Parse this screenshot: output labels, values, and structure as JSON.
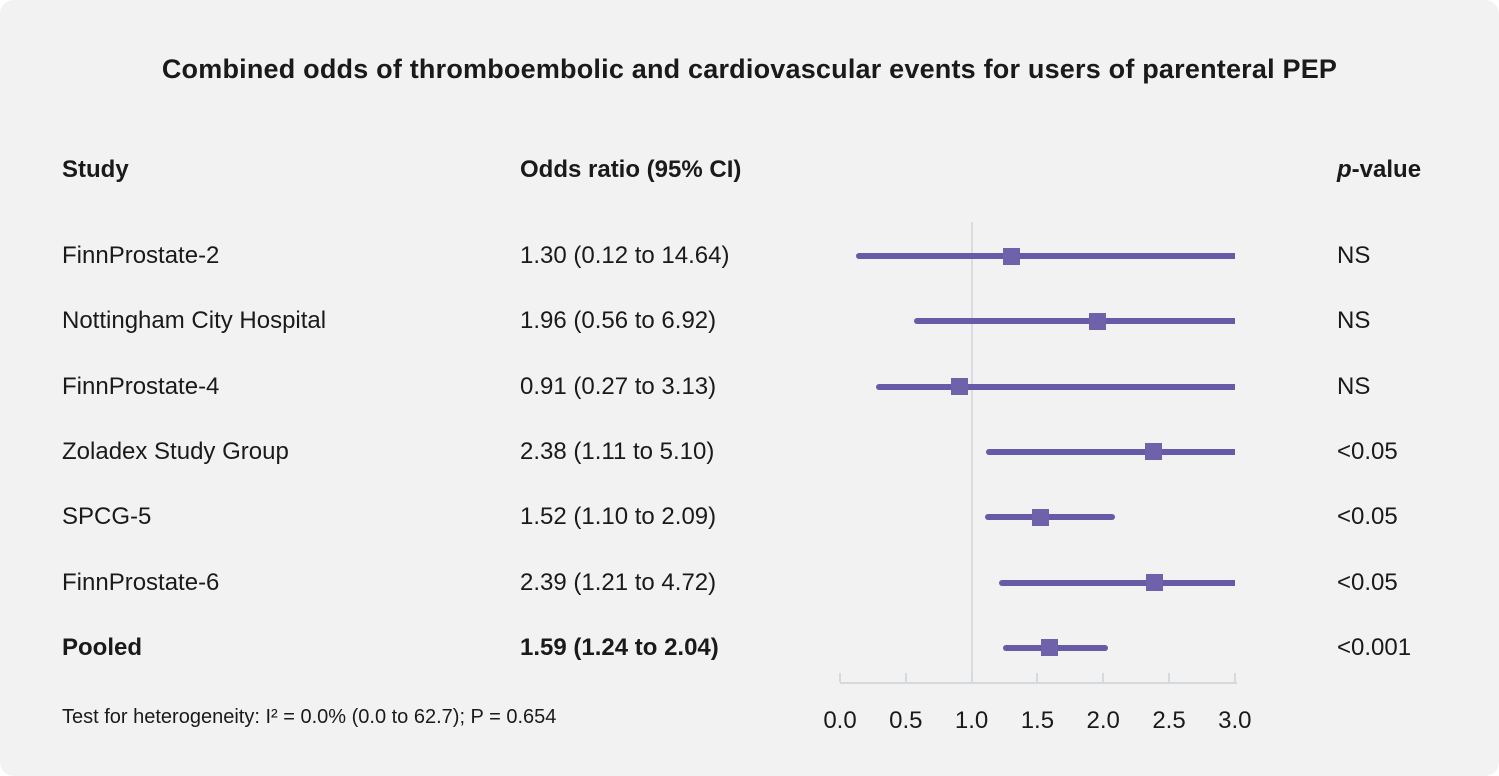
{
  "title": "Combined odds of thromboembolic and cardiovascular events for users of parenteral PEP",
  "header": {
    "study": "Study",
    "odds_ratio": "Odds ratio (95% CI)",
    "p_italic": "p",
    "p_suffix": "-value"
  },
  "footnote": "Test for heterogeneity: I² = 0.0% (0.0 to 62.7); P = 0.654",
  "colors": {
    "background": "#f2f2f2",
    "text": "#1a1a1a",
    "ci_line": "#675ba7",
    "marker": "#7061ab",
    "reference_line": "#d8dce1",
    "axis": "#d5dade"
  },
  "chart_data": {
    "type": "forest",
    "title": "Combined odds of thromboembolic and cardiovascular events for users of parenteral PEP",
    "xlim": [
      0.0,
      3.0
    ],
    "x_ticks": [
      0.0,
      0.5,
      1.0,
      1.5,
      2.0,
      2.5,
      3.0
    ],
    "reference_line_x": 1.0,
    "grid": false,
    "rows": [
      {
        "study": "FinnProstate-2",
        "or_label": "1.30 (0.12 to 14.64)",
        "or": 1.3,
        "ci_low": 0.12,
        "ci_high": 14.64,
        "p_value": "NS",
        "bold": false
      },
      {
        "study": "Nottingham City Hospital",
        "or_label": "1.96 (0.56 to 6.92)",
        "or": 1.96,
        "ci_low": 0.56,
        "ci_high": 6.92,
        "p_value": "NS",
        "bold": false
      },
      {
        "study": "FinnProstate-4",
        "or_label": "0.91 (0.27 to 3.13)",
        "or": 0.91,
        "ci_low": 0.27,
        "ci_high": 3.13,
        "p_value": "NS",
        "bold": false
      },
      {
        "study": "Zoladex Study Group",
        "or_label": "2.38 (1.11 to 5.10)",
        "or": 2.38,
        "ci_low": 1.11,
        "ci_high": 5.1,
        "p_value": "<0.05",
        "bold": false
      },
      {
        "study": "SPCG-5",
        "or_label": "1.52 (1.10 to 2.09)",
        "or": 1.52,
        "ci_low": 1.1,
        "ci_high": 2.09,
        "p_value": "<0.05",
        "bold": false
      },
      {
        "study": "FinnProstate-6",
        "or_label": "2.39 (1.21 to 4.72)",
        "or": 2.39,
        "ci_low": 1.21,
        "ci_high": 4.72,
        "p_value": "<0.05",
        "bold": false
      },
      {
        "study": "Pooled",
        "or_label": "1.59 (1.24 to 2.04)",
        "or": 1.59,
        "ci_low": 1.24,
        "ci_high": 2.04,
        "p_value": "<0.001",
        "bold": true
      }
    ]
  }
}
